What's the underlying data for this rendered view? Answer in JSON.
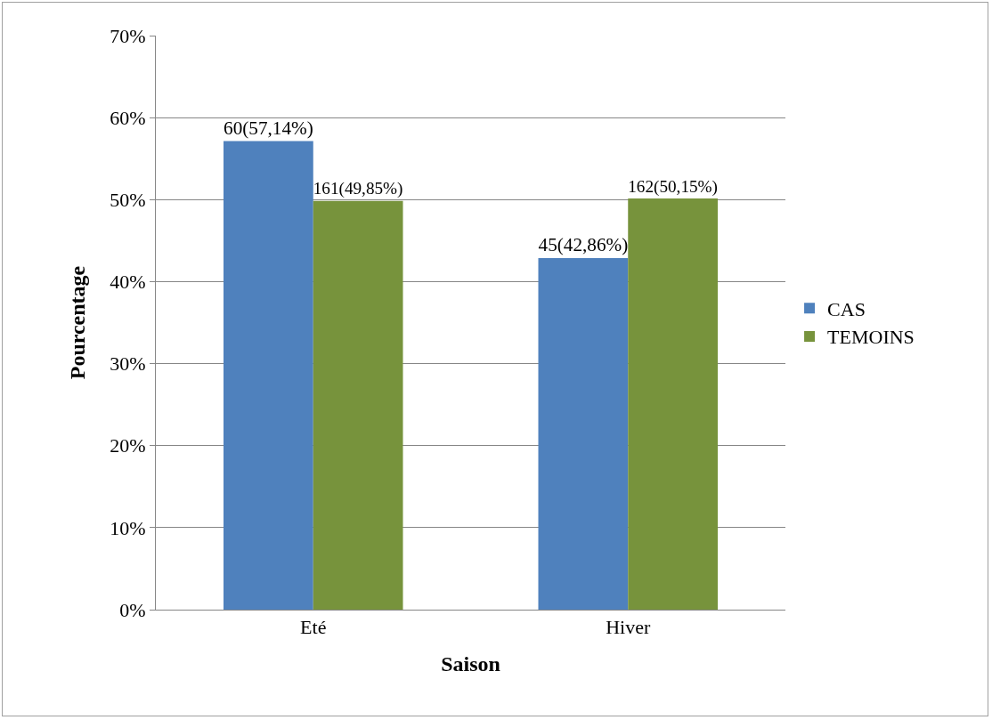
{
  "chart_data": {
    "type": "bar",
    "xlabel": "Saison",
    "ylabel": "Pourcentage",
    "categories": [
      "Eté",
      "Hiver"
    ],
    "series": [
      {
        "name": "CAS",
        "color": "#4f81bd",
        "values": [
          57.14,
          42.86
        ],
        "value_labels": [
          "60(57,14%)",
          "45(42,86%)"
        ]
      },
      {
        "name": "TEMOINS",
        "color": "#77933c",
        "values": [
          49.85,
          50.15
        ],
        "value_labels": [
          "161(49,85%)",
          "162(50,15%)"
        ]
      }
    ],
    "ylim": [
      0,
      70
    ],
    "yticks": [
      {
        "value": 0,
        "label": "0%"
      },
      {
        "value": 10,
        "label": "10%"
      },
      {
        "value": 20,
        "label": "20%"
      },
      {
        "value": 30,
        "label": "30%"
      },
      {
        "value": 40,
        "label": "40%"
      },
      {
        "value": 50,
        "label": "50%"
      },
      {
        "value": 60,
        "label": "60%"
      },
      {
        "value": 70,
        "label": "70%"
      }
    ],
    "grid": "y",
    "legend": "right"
  }
}
